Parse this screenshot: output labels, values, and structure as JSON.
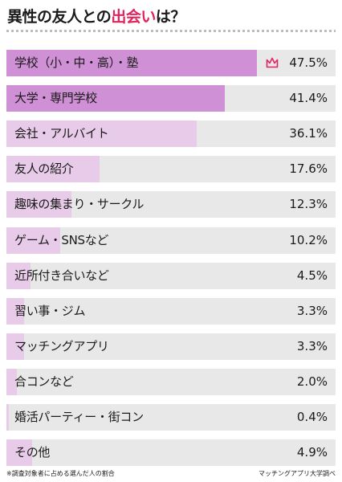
{
  "title": {
    "part1": "異性の友人との",
    "highlight": "出会い",
    "part2": "は？"
  },
  "chart_data": {
    "type": "bar",
    "orientation": "horizontal",
    "categories": [
      "学校（小・中・高）・塾",
      "大学・専門学校",
      "会社・アルバイト",
      "友人の紹介",
      "趣味の集まり・サークル",
      "ゲーム・SNSなど",
      "近所付き合いなど",
      "習い事・ジム",
      "マッチングアプリ",
      "合コンなど",
      "婚活パーティー・街コン",
      "その他"
    ],
    "values": [
      47.5,
      41.4,
      36.1,
      17.6,
      12.3,
      10.2,
      4.5,
      3.3,
      3.3,
      2.0,
      0.4,
      4.9
    ],
    "value_labels": [
      "47.5%",
      "41.4%",
      "36.1%",
      "17.6%",
      "12.3%",
      "10.2%",
      "4.5%",
      "3.3%",
      "3.3%",
      "2.0%",
      "0.4%",
      "4.9%"
    ],
    "unit": "%",
    "top_marker": "crown-icon",
    "colors": {
      "top_bars": "#cf90d5",
      "other_bars": "#e8cbe9",
      "track": "#e8e8e8",
      "crown": "#e0245e",
      "title_highlight": "#e0245e"
    }
  },
  "footnote": {
    "left": "※調査対象者に占める選んだ人の割合",
    "right": "マッチングアプリ大学調べ"
  }
}
